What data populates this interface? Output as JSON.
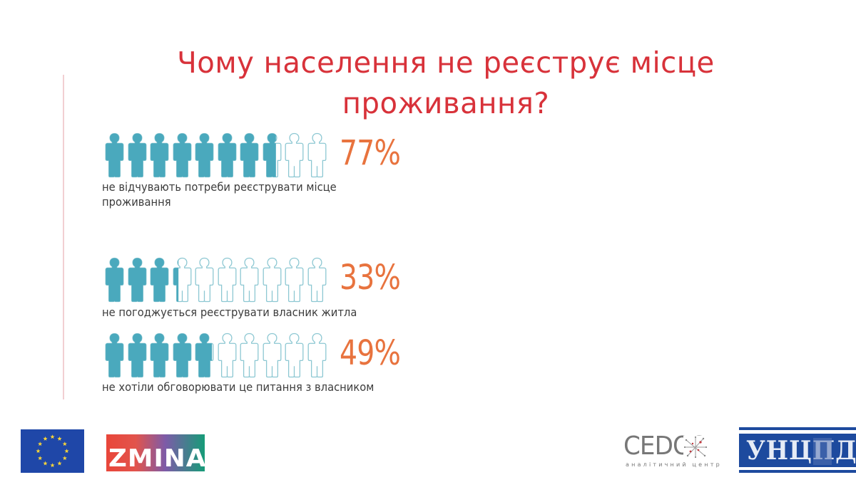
{
  "title": {
    "line1": "Чому населення не реєструє місце",
    "line2": "проживання?"
  },
  "colors": {
    "title": "#d8323a",
    "figure_filled": "#4aa9bd",
    "figure_outline": "#8cc7d2",
    "percent": "#e8733e",
    "label": "#3c3c3c",
    "divider": "#f2cfd2"
  },
  "stats": [
    {
      "percent_label": "77%",
      "value": 77,
      "label_line1": "не відчувають потреби реєструвати місце",
      "label_line2": "проживання"
    },
    {
      "percent_label": "33%",
      "value": 33,
      "label_line1": "не погоджується реєструвати власник житла",
      "label_line2": ""
    },
    {
      "percent_label": "49%",
      "value": 49,
      "label_line1": "не хотіли обговорювати це питання з власником",
      "label_line2": ""
    }
  ],
  "chart_data": {
    "type": "bar",
    "subtype": "pictograph (10 person icons per row, filled proportionally)",
    "title": "Чому населення не реєструє місце проживання?",
    "categories": [
      "не відчувають потреби реєструвати місце проживання",
      "не погоджується реєструвати власник житла",
      "не хотіли обговорювати це питання з власником"
    ],
    "values": [
      77,
      33,
      49
    ],
    "unit": "%",
    "icons_per_row": 10,
    "xlabel": "",
    "ylabel": "",
    "ylim": [
      0,
      100
    ],
    "grid": false,
    "legend": "none"
  },
  "logos": {
    "eu": "eu-flag",
    "zmina": "ZMINA",
    "cedos": "CEDOS",
    "cedos_subtitle": "аналітичний центр",
    "uncd": "УНЦПД"
  }
}
